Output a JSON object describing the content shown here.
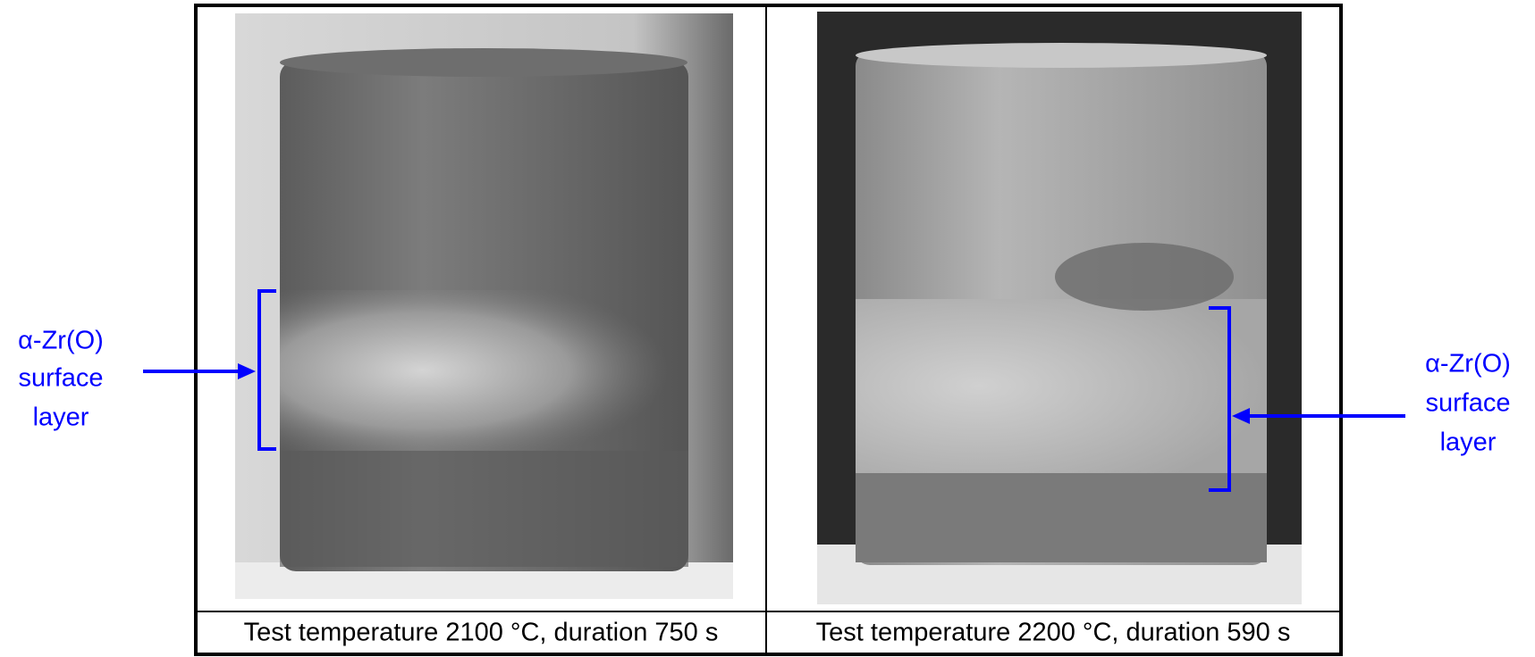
{
  "panels": [
    {
      "caption": "Test temperature 2100 °C, duration 750 s"
    },
    {
      "caption": "Test temperature 2200 °C, duration 590 s"
    }
  ],
  "annotations": [
    {
      "lines": [
        "α-Zr(O)",
        "surface",
        "layer"
      ]
    },
    {
      "lines": [
        "α-Zr(O)",
        "surface",
        "layer"
      ]
    }
  ]
}
